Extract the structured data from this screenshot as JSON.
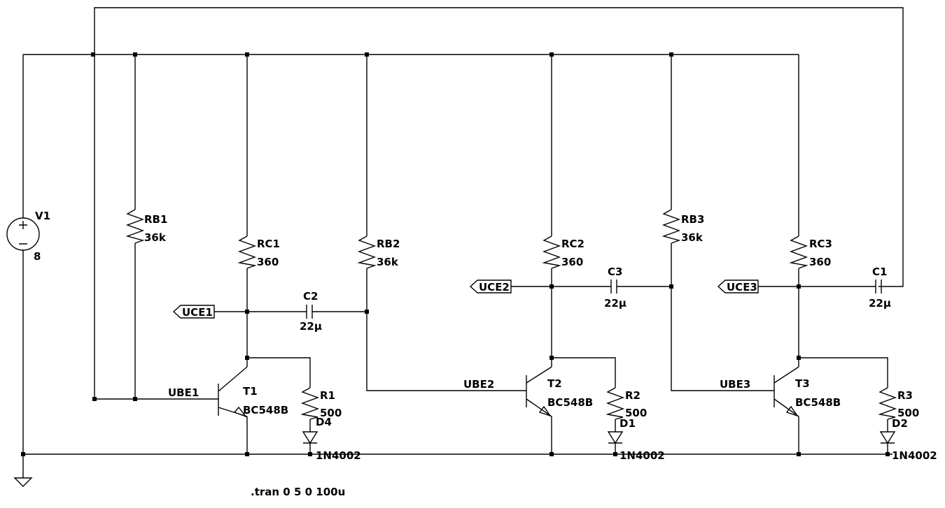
{
  "components": {
    "v1": {
      "name": "V1",
      "value": "8"
    },
    "rb1": {
      "name": "RB1",
      "value": "36k"
    },
    "rc1": {
      "name": "RC1",
      "value": "360"
    },
    "rb2": {
      "name": "RB2",
      "value": "36k"
    },
    "rc2": {
      "name": "RC2",
      "value": "360"
    },
    "rb3": {
      "name": "RB3",
      "value": "36k"
    },
    "rc3": {
      "name": "RC3",
      "value": "360"
    },
    "c1": {
      "name": "C1",
      "value": "22µ"
    },
    "c2": {
      "name": "C2",
      "value": "22µ"
    },
    "c3": {
      "name": "C3",
      "value": "22µ"
    },
    "t1": {
      "name": "T1",
      "value": "BC548B"
    },
    "t2": {
      "name": "T2",
      "value": "BC548B"
    },
    "t3": {
      "name": "T3",
      "value": "BC548B"
    },
    "r1": {
      "name": "R1",
      "value": "500"
    },
    "r2": {
      "name": "R2",
      "value": "500"
    },
    "r3": {
      "name": "R3",
      "value": "500"
    },
    "d1": {
      "name": "D1",
      "value": "1N4002"
    },
    "d2": {
      "name": "D2",
      "value": "1N4002"
    },
    "d4": {
      "name": "D4",
      "value": "1N4002"
    }
  },
  "net_labels": {
    "uce1": "UCE1",
    "uce2": "UCE2",
    "uce3": "UCE3",
    "ube1": "UBE1",
    "ube2": "UBE2",
    "ube3": "UBE3"
  },
  "directive": ".tran 0 5 0 100u"
}
